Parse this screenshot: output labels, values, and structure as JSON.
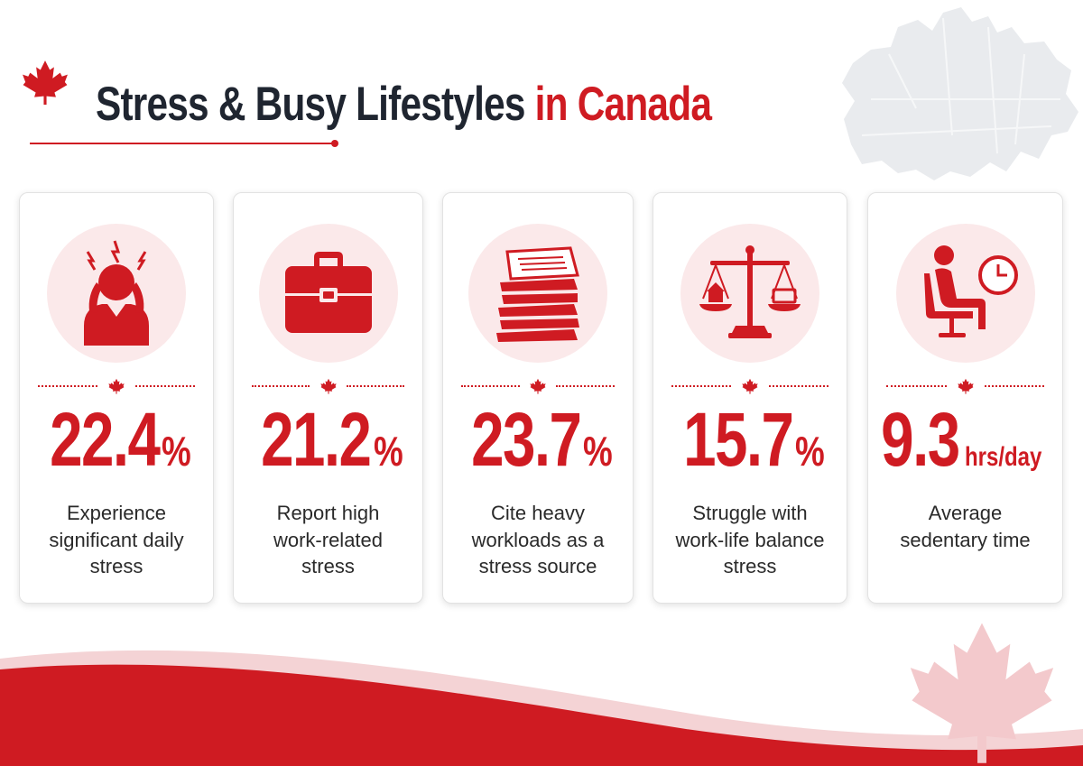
{
  "title": {
    "main": "Stress & Busy Lifestyles",
    "accent": "in Canada"
  },
  "colors": {
    "accent": "#cf1b22",
    "dark": "#1f2530",
    "icon_bg": "#fbe9ea"
  },
  "cards": [
    {
      "icon": "stressed-person-icon",
      "value": "22.4",
      "unit": "%",
      "description": [
        "Experience",
        "significant daily",
        "stress"
      ]
    },
    {
      "icon": "briefcase-icon",
      "value": "21.2",
      "unit": "%",
      "description": [
        "Report high",
        "work-related",
        "stress"
      ]
    },
    {
      "icon": "paper-stack-icon",
      "value": "23.7",
      "unit": "%",
      "description": [
        "Cite heavy",
        "workloads as a",
        "stress source"
      ]
    },
    {
      "icon": "balance-scale-icon",
      "value": "15.7",
      "unit": "%",
      "description": [
        "Struggle with",
        "work-life balance",
        "stress"
      ]
    },
    {
      "icon": "sitting-person-clock-icon",
      "value": "9.3",
      "unit": "hrs/day",
      "description": [
        "Average",
        "sedentary time"
      ]
    }
  ]
}
